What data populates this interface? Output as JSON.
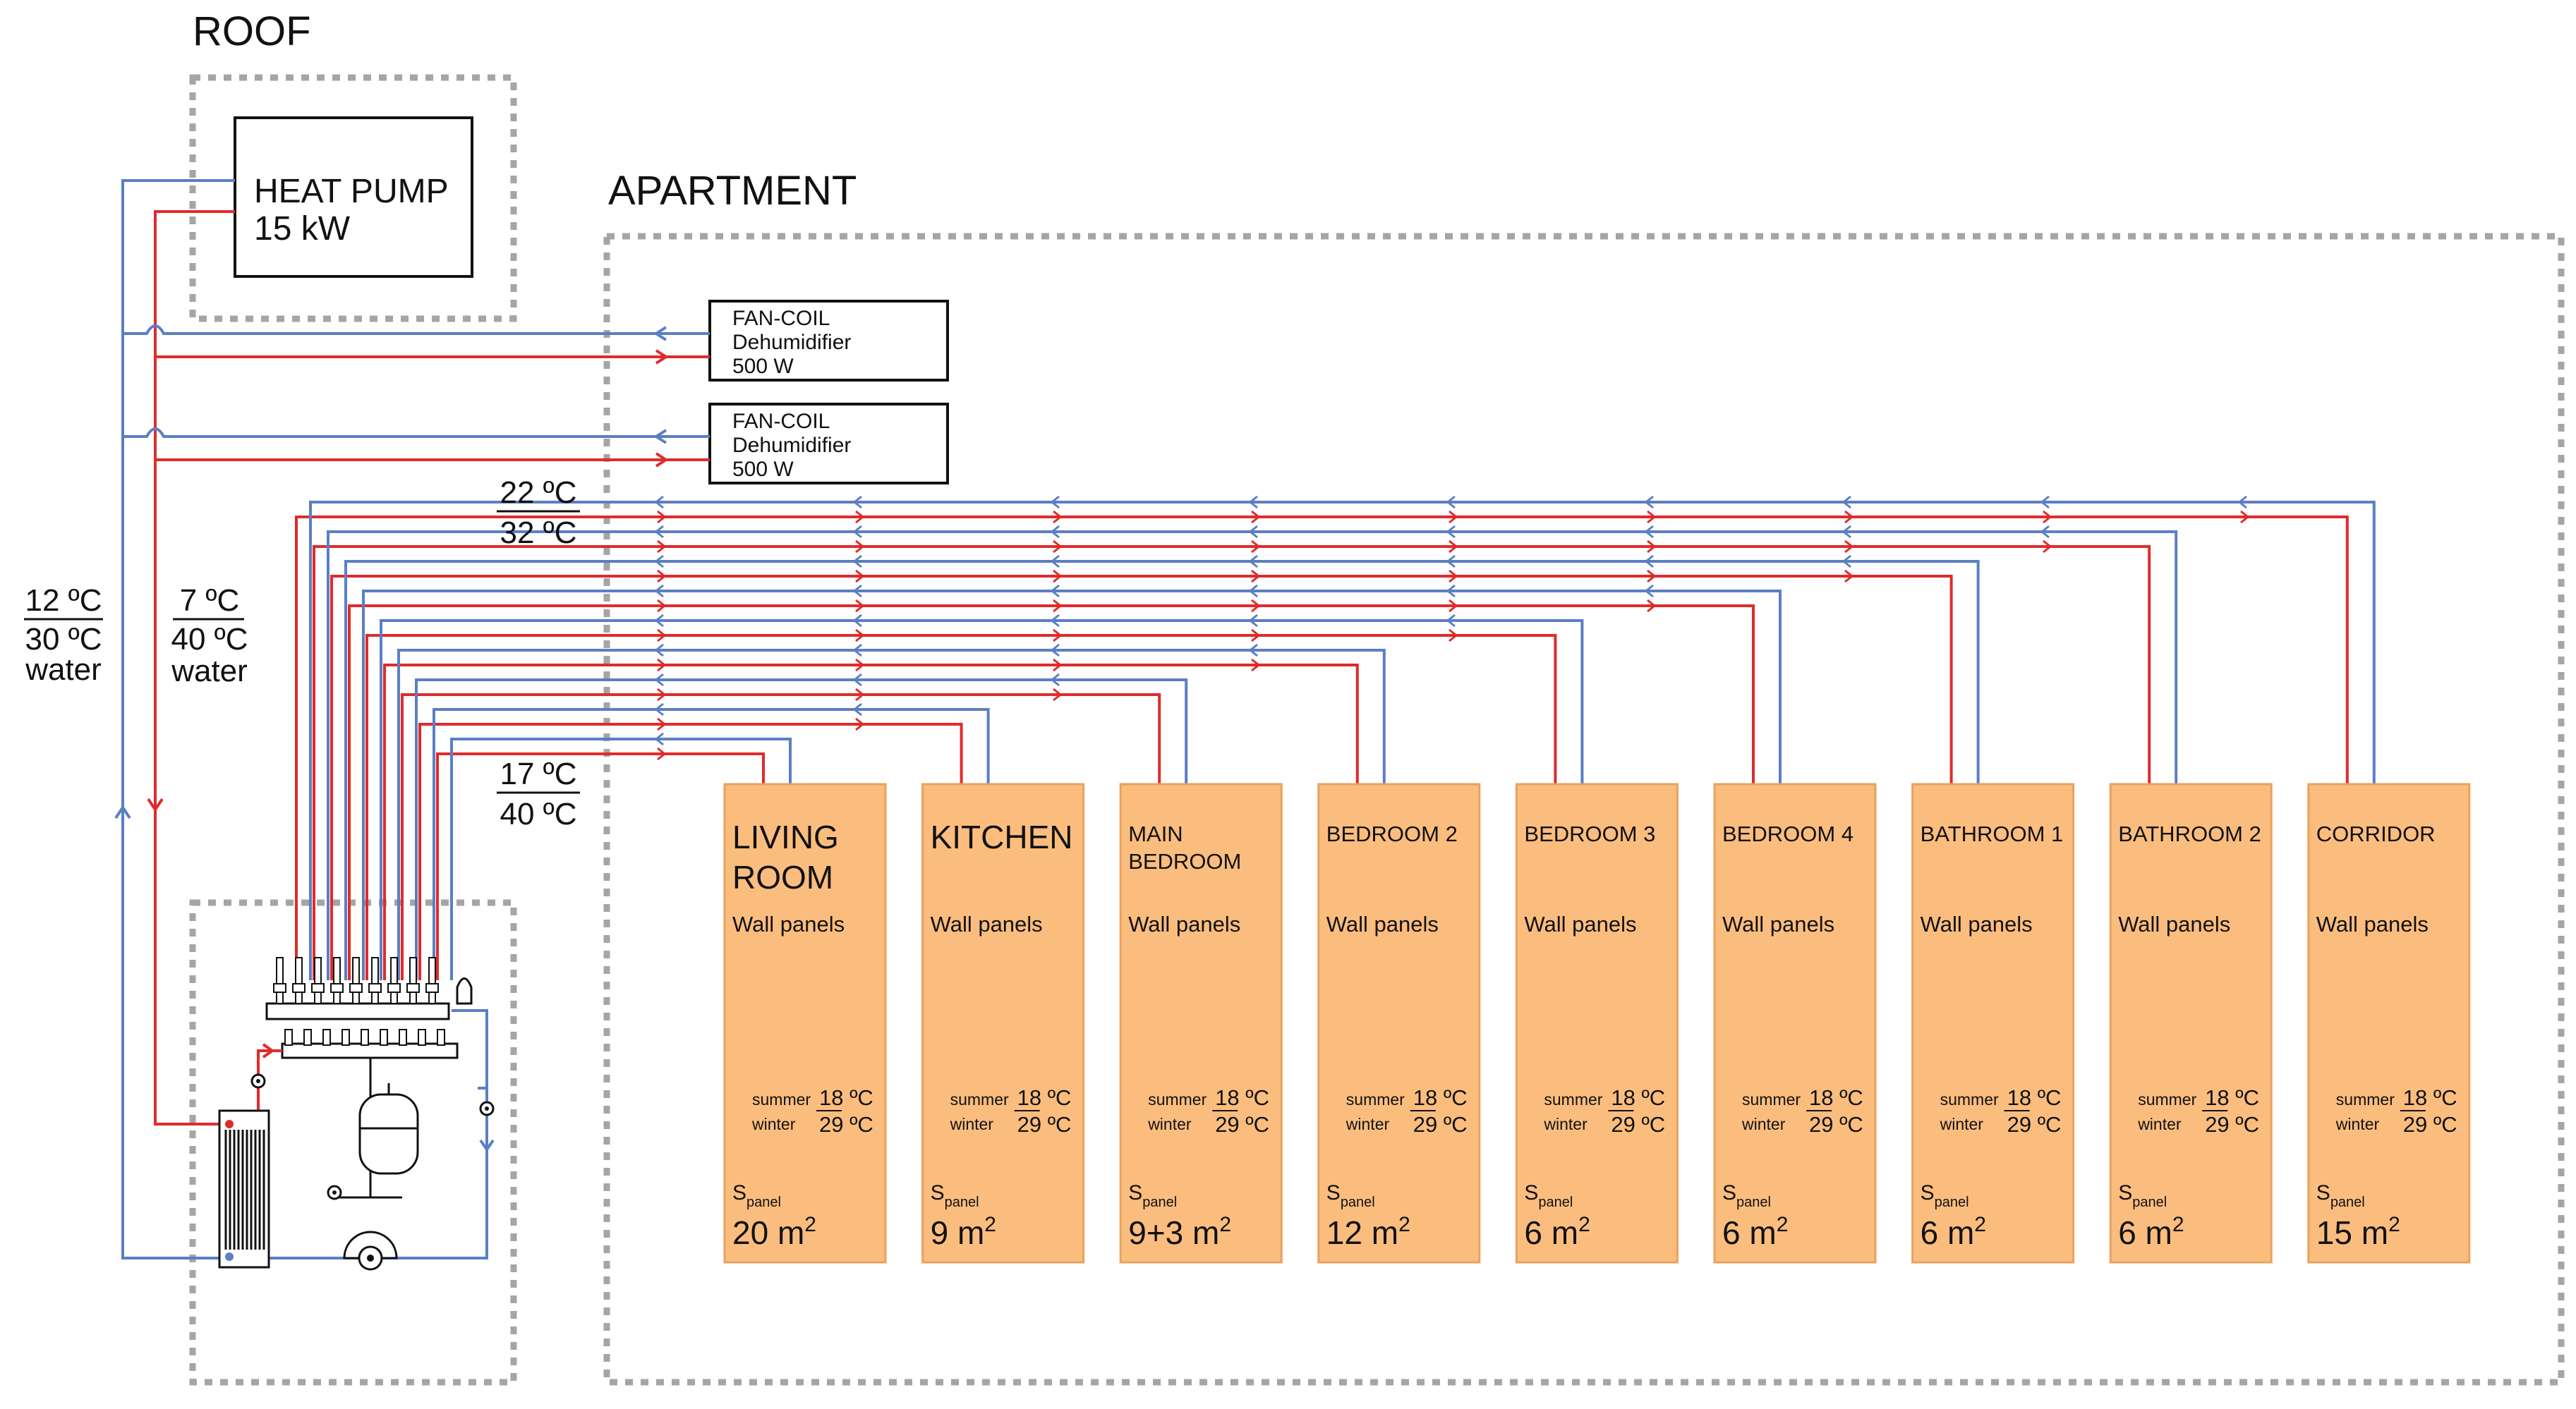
{
  "zones": {
    "roof": "ROOF",
    "apartment": "APARTMENT"
  },
  "heat_pump": {
    "name": "HEAT PUMP",
    "power": "15 kW"
  },
  "fan_coils": [
    {
      "line1": "FAN-COIL",
      "line2": "Dehumidifier",
      "line3": "500 W"
    },
    {
      "line1": "FAN-COIL",
      "line2": "Dehumidifier",
      "line3": "500 W"
    }
  ],
  "temperatures": {
    "source": {
      "top": "12 ºC",
      "bottom": "30 ºC",
      "medium": "water"
    },
    "supply": {
      "top": "7 ºC",
      "bottom": "40 ºC",
      "medium": "water"
    },
    "fancoil_circuit": {
      "top": "22 ºC",
      "bottom": "32 ºC"
    },
    "panel_circuit": {
      "top": "17 ºC",
      "bottom": "40 ºC"
    }
  },
  "room_common": {
    "wall_label": "Wall panels",
    "summer_label": "summer",
    "winter_label": "winter",
    "summer_temp": "18 ºC",
    "winter_temp": "29 ºC",
    "spanel_main": "S",
    "spanel_sub": "panel"
  },
  "rooms": [
    {
      "line1": "LIVING",
      "line2": "ROOM",
      "area": "20 m",
      "area_exp": "2"
    },
    {
      "line1": "KITCHEN",
      "line2": "",
      "area": "9 m",
      "area_exp": "2"
    },
    {
      "line1": "MAIN",
      "line2": "BEDROOM",
      "area": "9+3 m",
      "area_exp": "2"
    },
    {
      "line1": "BEDROOM 2",
      "line2": "",
      "area": "12 m",
      "area_exp": "2"
    },
    {
      "line1": "BEDROOM 3",
      "line2": "",
      "area": "6 m",
      "area_exp": "2"
    },
    {
      "line1": "BEDROOM 4",
      "line2": "",
      "area": "6 m",
      "area_exp": "2"
    },
    {
      "line1": "BATHROOM 1",
      "line2": "",
      "area": "6 m",
      "area_exp": "2"
    },
    {
      "line1": "BATHROOM 2",
      "line2": "",
      "area": "6 m",
      "area_exp": "2"
    },
    {
      "line1": "CORRIDOR",
      "line2": "",
      "area": "15 m",
      "area_exp": "2"
    }
  ],
  "colors": {
    "supply_pipe": "#e02b2b",
    "return_pipe": "#5b7fc4",
    "panel_fill": "#fbbd7e",
    "zone_border": "#a5a5a5"
  }
}
